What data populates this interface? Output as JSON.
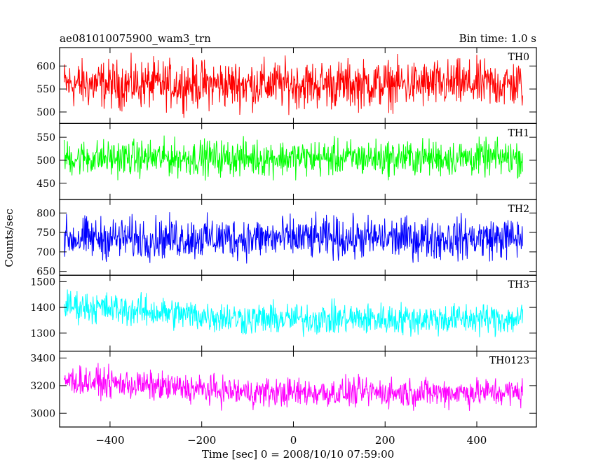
{
  "chart_data": {
    "type": "line",
    "title_left": "ae081010075900_wam3_trn",
    "title_right": "Bin time: 1.0 s",
    "xlabel": "Time [sec] 0 = 2008/10/10 07:59:00",
    "ylabel": "Counts/sec",
    "xlim": [
      -510,
      530
    ],
    "x_ticks": [
      -400,
      -200,
      0,
      200,
      400
    ],
    "x_range": [
      -500,
      500
    ],
    "panels": [
      {
        "name": "TH0",
        "color": "#ff0000",
        "ylim": [
          475,
          640
        ],
        "y_ticks": [
          500,
          550,
          600
        ],
        "mean": 560,
        "spread": 32
      },
      {
        "name": "TH1",
        "color": "#00ff00",
        "ylim": [
          415,
          580
        ],
        "y_ticks": [
          450,
          500,
          550
        ],
        "mean": 505,
        "spread": 24
      },
      {
        "name": "TH2",
        "color": "#0000ff",
        "ylim": [
          640,
          835
        ],
        "y_ticks": [
          650,
          700,
          750,
          800
        ],
        "mean": 735,
        "spread": 33
      },
      {
        "name": "TH3",
        "color": "#00ffff",
        "ylim": [
          1230,
          1525
        ],
        "y_ticks": [
          1300,
          1400,
          1500
        ],
        "mean": 1355,
        "spread": 38
      },
      {
        "name": "TH0123",
        "color": "#ff00ff",
        "ylim": [
          2900,
          3450
        ],
        "y_ticks": [
          3000,
          3200,
          3400
        ],
        "mean": 3150,
        "spread": 65
      }
    ]
  }
}
